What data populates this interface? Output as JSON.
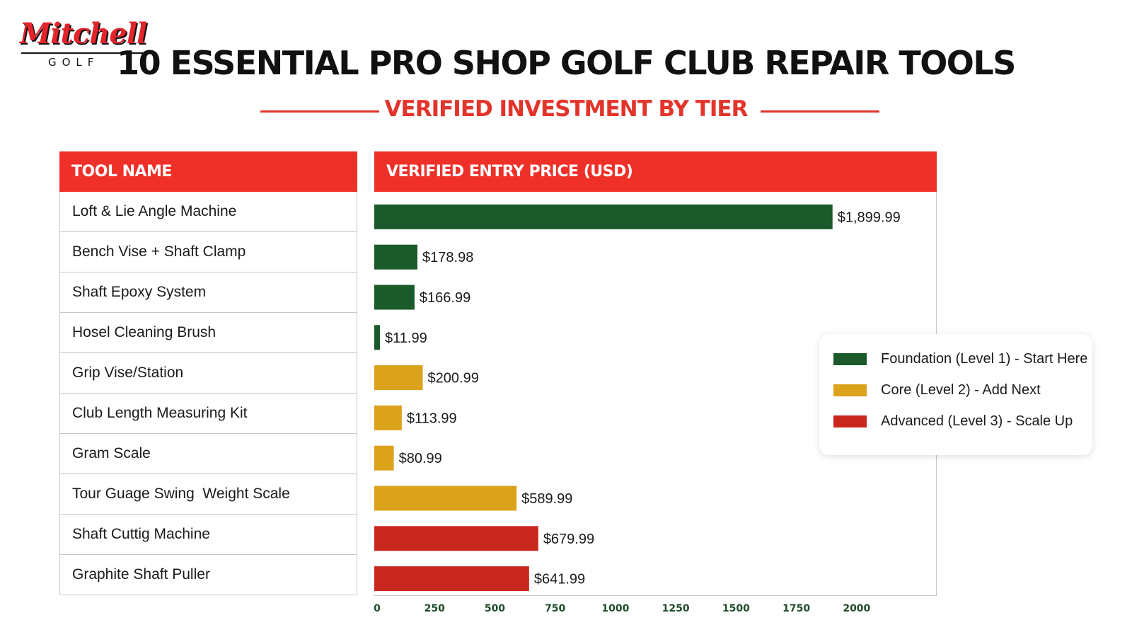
{
  "logo": {
    "word": "Mitchell",
    "sub": "GOLF"
  },
  "title": "10 ESSENTIAL PRO SHOP GOLF CLUB REPAIR TOOLS",
  "subtitle": "VERIFIED INVESTMENT BY TIER",
  "colors": {
    "accent": "#ee3028",
    "foundation": "#1b5a2b",
    "core": "#dba21b",
    "advanced": "#c9271e"
  },
  "table": {
    "header": "TOOL NAME"
  },
  "chart_data": {
    "type": "bar",
    "orientation": "horizontal",
    "value_header": "VERIFIED ENTRY PRICE (USD)",
    "categories": [
      "Loft & Lie Angle Machine",
      "Bench Vise + Shaft Clamp",
      "Shaft Epoxy System",
      "Hosel Cleaning Brush",
      "Grip Vise/Station",
      "Club Length Measuring Kit",
      "Gram Scale",
      "Tour Guage Swing  Weight Scale",
      "Shaft Cuttig Machine",
      "Graphite Shaft Puller"
    ],
    "values": [
      1899.99,
      178.98,
      166.99,
      11.99,
      200.99,
      113.99,
      80.99,
      589.99,
      679.99,
      641.99
    ],
    "value_labels": [
      "$1,899.99",
      "$178.98",
      "$166.99",
      "$11.99",
      "$200.99",
      "$113.99",
      "$80.99",
      "$589.99",
      "$679.99",
      "$641.99"
    ],
    "tiers": [
      "foundation",
      "foundation",
      "foundation",
      "foundation",
      "core",
      "core",
      "core",
      "core",
      "advanced",
      "advanced"
    ],
    "xlim": [
      0,
      2200
    ],
    "xticks": [
      0,
      250,
      500,
      750,
      1000,
      1250,
      1500,
      1750,
      2000
    ],
    "grid": false,
    "legend": {
      "position": "right",
      "items": [
        {
          "label": "Foundation (Level 1) - Start Here",
          "color": "#1b5a2b"
        },
        {
          "label": "Core (Level 2) - Add Next",
          "color": "#dba21b"
        },
        {
          "label": "Advanced (Level 3) - Scale Up",
          "color": "#c9271e"
        }
      ]
    }
  }
}
